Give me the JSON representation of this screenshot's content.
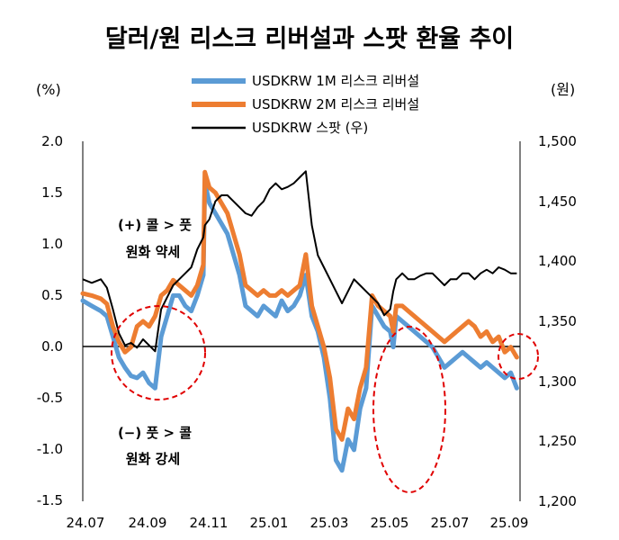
{
  "chart_data": {
    "type": "line",
    "title": "달러/원 리스크 리버설과 스팟 환율 추이",
    "left_unit": "(%)",
    "right_unit": "(원)",
    "x_ticks": [
      "24.07",
      "24.09",
      "24.11",
      "25.01",
      "25.03",
      "25.05",
      "25.07",
      "25.09"
    ],
    "x_range": [
      "2024-07",
      "2025-09"
    ],
    "y_left": {
      "min": -1.5,
      "max": 2.0,
      "ticks": [
        "2.0",
        "1.5",
        "1.0",
        "0.5",
        "0.0",
        "-0.5",
        "-1.0",
        "-1.5"
      ],
      "tick_values": [
        2.0,
        1.5,
        1.0,
        0.5,
        0.0,
        -0.5,
        -1.0,
        -1.5
      ]
    },
    "y_right": {
      "min": 1200,
      "max": 1500,
      "ticks": [
        "1,500",
        "1,450",
        "1,400",
        "1,350",
        "1,300",
        "1,250",
        "1,200"
      ],
      "tick_values": [
        1500,
        1450,
        1400,
        1350,
        1300,
        1250,
        1200
      ]
    },
    "legend": [
      {
        "name": "USDKRW 1M 리스크 리버설",
        "color": "#5B9BD5"
      },
      {
        "name": "USDKRW 2M 리스크 리버설",
        "color": "#ED7D31"
      },
      {
        "name": "USDKRW 스팟 (우)",
        "color": "#000000"
      }
    ],
    "annotations": {
      "upper": [
        "(+) 콜 > 풋",
        "원화 약세"
      ],
      "lower": [
        "(−) 풋 > 콜",
        "원화 강세"
      ]
    },
    "series": [
      {
        "name": "USDKRW 1M 리스크 리버설",
        "axis": "left",
        "color": "#5B9BD5",
        "x": [
          0.0,
          0.3,
          0.6,
          0.8,
          1.0,
          1.2,
          1.4,
          1.6,
          1.8,
          2.0,
          2.2,
          2.4,
          2.6,
          2.8,
          3.0,
          3.2,
          3.4,
          3.6,
          3.8,
          4.0,
          4.05,
          4.2,
          4.4,
          4.6,
          4.8,
          5.0,
          5.2,
          5.4,
          5.6,
          5.8,
          6.0,
          6.2,
          6.4,
          6.6,
          6.8,
          7.0,
          7.2,
          7.4,
          7.6,
          7.8,
          8.0,
          8.2,
          8.4,
          8.6,
          8.8,
          9.0,
          9.2,
          9.4,
          9.6,
          9.8,
          10.0,
          10.2,
          10.3,
          10.4,
          10.6,
          10.8,
          11.0,
          11.2,
          11.4,
          11.6,
          11.8,
          12.0,
          12.2,
          12.4,
          12.6,
          12.8,
          13.0,
          13.2,
          13.4,
          13.6,
          13.8,
          14.0,
          14.2,
          14.4
        ],
        "y": [
          0.45,
          0.4,
          0.35,
          0.3,
          0.1,
          -0.1,
          -0.2,
          -0.28,
          -0.3,
          -0.25,
          -0.35,
          -0.4,
          0.1,
          0.3,
          0.5,
          0.5,
          0.4,
          0.35,
          0.5,
          0.7,
          1.6,
          1.4,
          1.3,
          1.2,
          1.1,
          0.9,
          0.7,
          0.4,
          0.35,
          0.3,
          0.4,
          0.35,
          0.3,
          0.45,
          0.35,
          0.4,
          0.5,
          0.7,
          0.3,
          0.15,
          -0.1,
          -0.5,
          -1.1,
          -1.2,
          -0.9,
          -1.0,
          -0.6,
          -0.4,
          0.4,
          0.3,
          0.2,
          0.15,
          0.0,
          0.3,
          0.25,
          0.2,
          0.15,
          0.1,
          0.05,
          0.0,
          -0.1,
          -0.2,
          -0.15,
          -0.1,
          -0.05,
          -0.1,
          -0.15,
          -0.2,
          -0.15,
          -0.2,
          -0.25,
          -0.3,
          -0.25,
          -0.4
        ]
      },
      {
        "name": "USDKRW 2M 리스크 리버설",
        "axis": "left",
        "color": "#ED7D31",
        "x": [
          0.0,
          0.3,
          0.6,
          0.8,
          1.0,
          1.2,
          1.4,
          1.6,
          1.8,
          2.0,
          2.2,
          2.4,
          2.6,
          2.8,
          3.0,
          3.2,
          3.4,
          3.6,
          3.8,
          4.0,
          4.05,
          4.2,
          4.4,
          4.6,
          4.8,
          5.0,
          5.2,
          5.4,
          5.6,
          5.8,
          6.0,
          6.2,
          6.4,
          6.6,
          6.8,
          7.0,
          7.2,
          7.4,
          7.6,
          7.8,
          8.0,
          8.2,
          8.4,
          8.6,
          8.8,
          9.0,
          9.2,
          9.4,
          9.6,
          9.8,
          10.0,
          10.2,
          10.3,
          10.4,
          10.6,
          10.8,
          11.0,
          11.2,
          11.4,
          11.6,
          11.8,
          12.0,
          12.2,
          12.4,
          12.6,
          12.8,
          13.0,
          13.2,
          13.4,
          13.6,
          13.8,
          14.0,
          14.2,
          14.4
        ],
        "y": [
          0.52,
          0.5,
          0.47,
          0.42,
          0.2,
          0.05,
          -0.05,
          0.0,
          0.2,
          0.25,
          0.2,
          0.3,
          0.5,
          0.55,
          0.65,
          0.6,
          0.55,
          0.5,
          0.6,
          0.8,
          1.7,
          1.55,
          1.5,
          1.4,
          1.3,
          1.1,
          0.9,
          0.6,
          0.55,
          0.5,
          0.55,
          0.5,
          0.5,
          0.55,
          0.5,
          0.55,
          0.6,
          0.9,
          0.4,
          0.2,
          0.0,
          -0.3,
          -0.8,
          -0.9,
          -0.6,
          -0.7,
          -0.4,
          -0.2,
          0.5,
          0.4,
          0.35,
          0.3,
          0.15,
          0.4,
          0.4,
          0.35,
          0.3,
          0.25,
          0.2,
          0.15,
          0.1,
          0.05,
          0.1,
          0.15,
          0.2,
          0.25,
          0.2,
          0.1,
          0.15,
          0.05,
          0.1,
          -0.05,
          0.0,
          -0.1
        ]
      },
      {
        "name": "USDKRW 스팟 (우)",
        "axis": "right",
        "color": "#000000",
        "x": [
          0.0,
          0.3,
          0.6,
          0.8,
          1.0,
          1.2,
          1.4,
          1.6,
          1.8,
          2.0,
          2.2,
          2.4,
          2.6,
          2.8,
          3.0,
          3.2,
          3.4,
          3.6,
          3.8,
          4.0,
          4.05,
          4.2,
          4.4,
          4.6,
          4.8,
          5.0,
          5.2,
          5.4,
          5.6,
          5.8,
          6.0,
          6.2,
          6.4,
          6.6,
          6.8,
          7.0,
          7.2,
          7.4,
          7.6,
          7.8,
          8.0,
          8.2,
          8.4,
          8.6,
          8.8,
          9.0,
          9.2,
          9.4,
          9.6,
          9.8,
          10.0,
          10.2,
          10.3,
          10.4,
          10.6,
          10.8,
          11.0,
          11.2,
          11.4,
          11.6,
          11.8,
          12.0,
          12.2,
          12.4,
          12.6,
          12.8,
          13.0,
          13.2,
          13.4,
          13.6,
          13.8,
          14.0,
          14.2,
          14.4
        ],
        "y": [
          1385,
          1382,
          1385,
          1378,
          1360,
          1340,
          1330,
          1332,
          1328,
          1335,
          1330,
          1325,
          1360,
          1370,
          1380,
          1385,
          1390,
          1395,
          1410,
          1420,
          1430,
          1435,
          1450,
          1455,
          1455,
          1450,
          1445,
          1440,
          1438,
          1445,
          1450,
          1460,
          1465,
          1460,
          1462,
          1465,
          1470,
          1475,
          1430,
          1405,
          1395,
          1385,
          1375,
          1365,
          1375,
          1385,
          1380,
          1375,
          1370,
          1365,
          1355,
          1360,
          1375,
          1385,
          1390,
          1385,
          1385,
          1388,
          1390,
          1390,
          1385,
          1380,
          1385,
          1385,
          1390,
          1390,
          1385,
          1390,
          1393,
          1390,
          1395,
          1393,
          1390,
          1390
        ]
      }
    ]
  }
}
